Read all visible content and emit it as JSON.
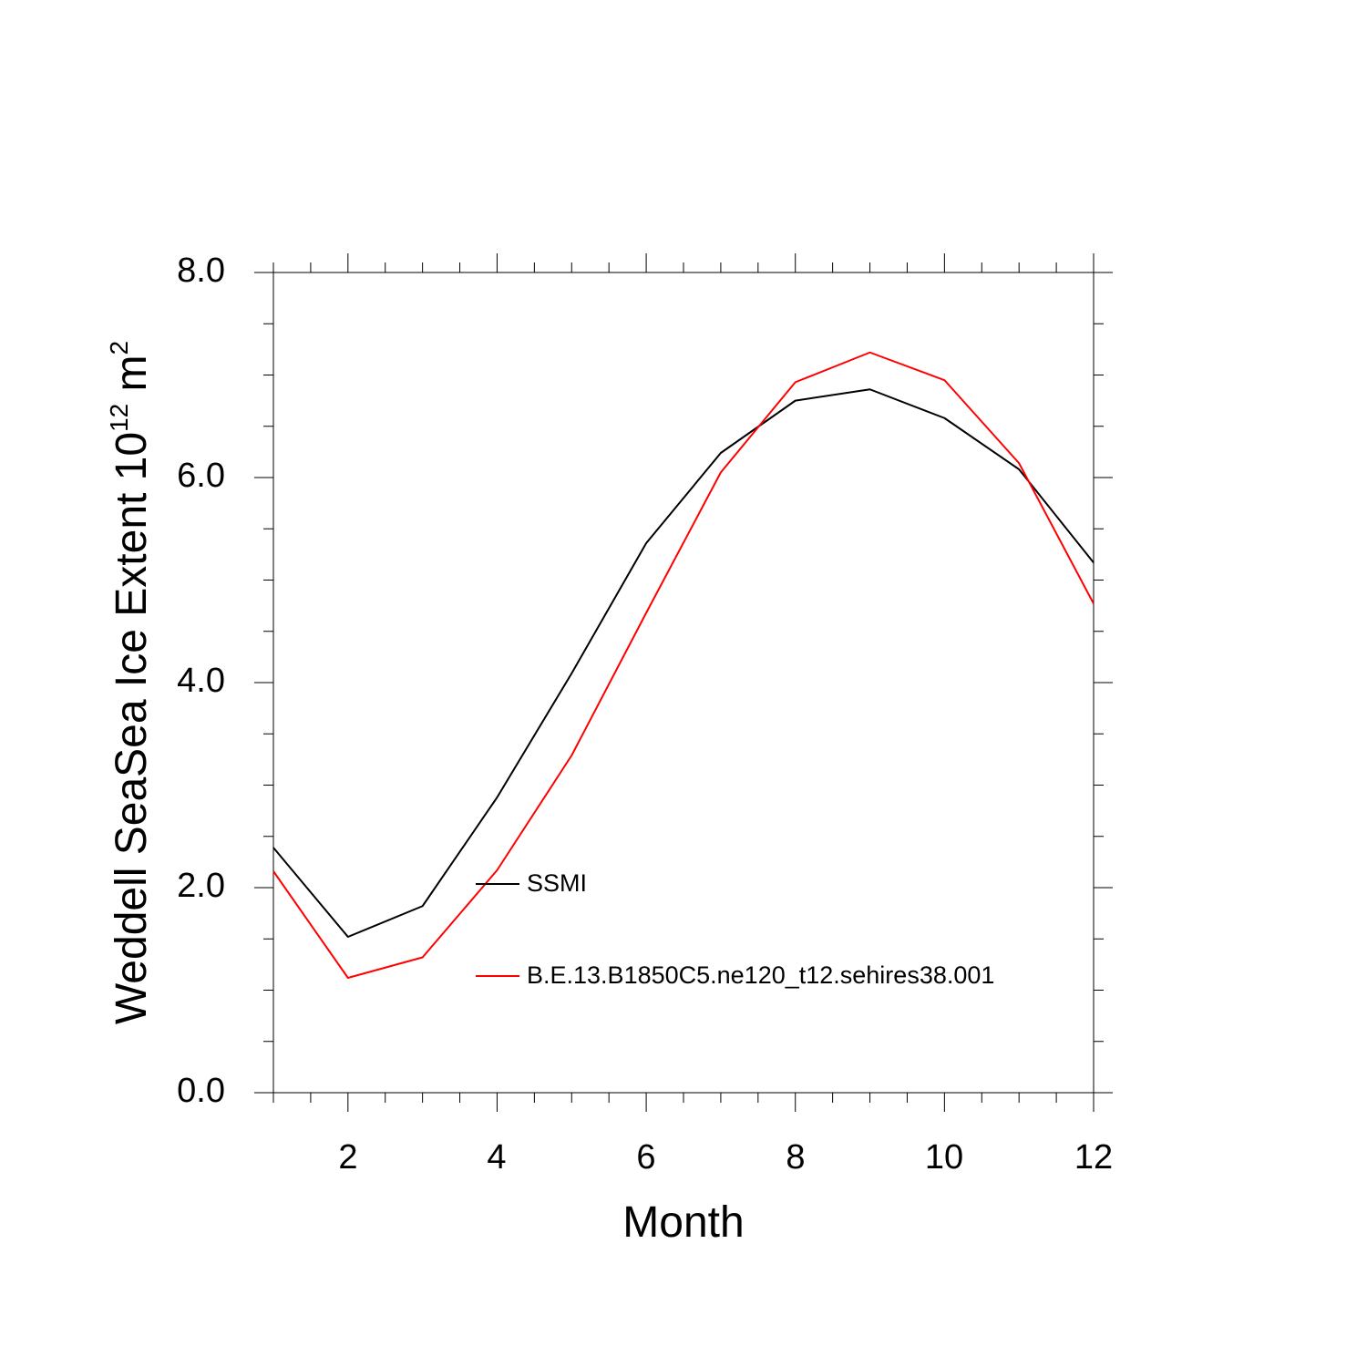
{
  "chart_data": {
    "type": "line",
    "title": "",
    "xlabel": "Month",
    "ylabel_main": "Weddell SeaSea Ice Extent 10",
    "ylabel_exp": "12",
    "ylabel_unit": " m",
    "ylabel_unit_exp": "2",
    "xlim": [
      1,
      12
    ],
    "ylim": [
      0,
      8
    ],
    "x_ticks": [
      2,
      4,
      6,
      8,
      10,
      12
    ],
    "y_ticks": [
      "0.0",
      "2.0",
      "4.0",
      "6.0",
      "8.0"
    ],
    "x": [
      1,
      2,
      3,
      4,
      5,
      6,
      7,
      8,
      9,
      10,
      11,
      12
    ],
    "series": [
      {
        "name": "SSMI",
        "color": "#000000",
        "values": [
          2.39,
          1.52,
          1.82,
          2.88,
          4.09,
          5.36,
          6.24,
          6.75,
          6.86,
          6.58,
          6.08,
          5.17
        ]
      },
      {
        "name": "B.E.13.B1850C5.ne120_t12.sehires38.001",
        "color": "#ff0000",
        "values": [
          2.16,
          1.12,
          1.32,
          2.17,
          3.29,
          4.68,
          6.05,
          6.93,
          7.22,
          6.95,
          6.14,
          4.77
        ]
      }
    ],
    "grid": false,
    "legend_position": "inside-lower-middle"
  }
}
